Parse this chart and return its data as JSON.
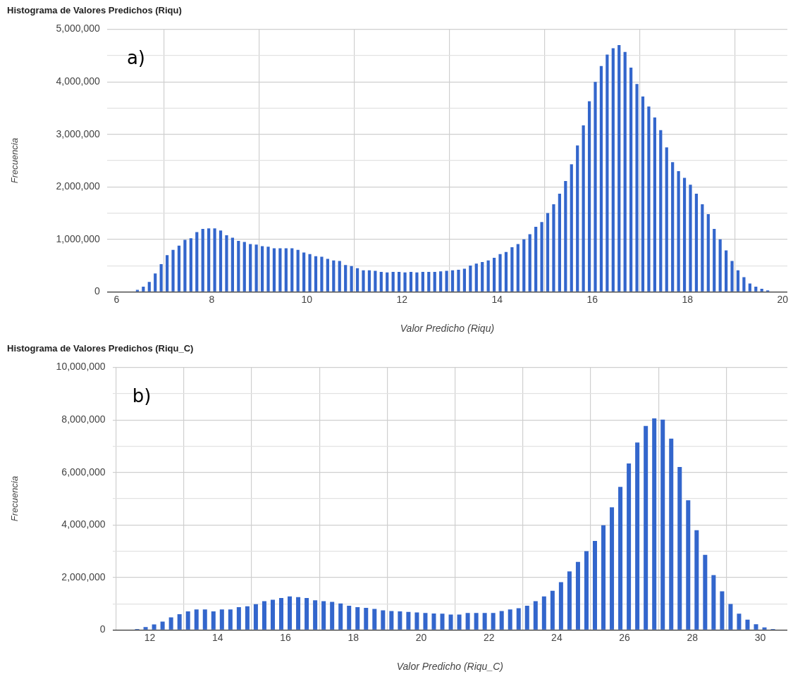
{
  "chart_data": [
    {
      "type": "histogram",
      "title": "Histograma de Valores Predichos (Riqu)",
      "xlabel": "Valor Predicho (Riqu)",
      "ylabel": "Frecuencia",
      "annotations": [
        "a)"
      ],
      "color": "#3366cc",
      "grid": true,
      "legend": false,
      "bins": [
        6.25,
        6.375,
        6.5,
        6.625,
        6.75,
        6.875,
        7,
        7.125,
        7.25,
        7.375,
        7.5,
        7.625,
        7.75,
        7.875,
        8,
        8.125,
        8.25,
        8.375,
        8.5,
        8.625,
        8.75,
        8.875,
        9,
        9.125,
        9.25,
        9.375,
        9.5,
        9.625,
        9.75,
        9.875,
        10,
        10.125,
        10.25,
        10.375,
        10.5,
        10.625,
        10.75,
        10.875,
        11,
        11.125,
        11.25,
        11.375,
        11.5,
        11.625,
        11.75,
        11.875,
        12,
        12.125,
        12.25,
        12.375,
        12.5,
        12.625,
        12.75,
        12.875,
        13,
        13.125,
        13.25,
        13.375,
        13.5,
        13.625,
        13.75,
        13.875,
        14,
        14.125,
        14.25,
        14.375,
        14.5,
        14.625,
        14.75,
        14.875,
        15,
        15.125,
        15.25,
        15.375,
        15.5,
        15.625,
        15.75,
        15.875,
        16,
        16.125,
        16.25,
        16.375,
        16.5,
        16.625,
        16.75,
        16.875,
        17,
        17.125,
        17.25,
        17.375,
        17.5,
        17.625,
        17.75,
        17.875,
        18,
        18.125,
        18.25,
        18.375,
        18.5,
        18.625,
        18.75,
        18.875,
        19,
        19.125,
        19.25,
        19.375,
        19.5,
        19.625,
        19.75,
        19.875
      ],
      "values": [
        10000,
        40000,
        100000,
        190000,
        350000,
        530000,
        700000,
        800000,
        880000,
        990000,
        1020000,
        1140000,
        1200000,
        1210000,
        1210000,
        1170000,
        1080000,
        1030000,
        970000,
        950000,
        910000,
        900000,
        870000,
        860000,
        830000,
        830000,
        830000,
        830000,
        800000,
        750000,
        720000,
        680000,
        670000,
        630000,
        600000,
        590000,
        510000,
        490000,
        450000,
        410000,
        410000,
        400000,
        380000,
        370000,
        380000,
        380000,
        370000,
        380000,
        370000,
        380000,
        380000,
        380000,
        390000,
        400000,
        410000,
        420000,
        440000,
        500000,
        540000,
        570000,
        600000,
        650000,
        720000,
        760000,
        850000,
        910000,
        1000000,
        1100000,
        1240000,
        1330000,
        1500000,
        1670000,
        1870000,
        2110000,
        2430000,
        2790000,
        3170000,
        3630000,
        4000000,
        4300000,
        4520000,
        4640000,
        4700000,
        4570000,
        4270000,
        3960000,
        3720000,
        3530000,
        3320000,
        3080000,
        2750000,
        2470000,
        2300000,
        2170000,
        2040000,
        1870000,
        1670000,
        1480000,
        1200000,
        1000000,
        790000,
        590000,
        410000,
        280000,
        160000,
        100000,
        60000,
        30000,
        10000
      ],
      "xlim": [
        5.8,
        20.1
      ],
      "xticks": [
        6,
        8,
        10,
        12,
        14,
        16,
        18,
        20
      ],
      "ylim": [
        0,
        5000000
      ],
      "yticks": [
        {
          "value": 0,
          "label": "0"
        },
        {
          "value": 500000,
          "label": null
        },
        {
          "value": 1000000,
          "label": "1,000,000"
        },
        {
          "value": 1500000,
          "label": null
        },
        {
          "value": 2000000,
          "label": "2,000,000"
        },
        {
          "value": 2500000,
          "label": null
        },
        {
          "value": 3000000,
          "label": "3,000,000"
        },
        {
          "value": 3500000,
          "label": null
        },
        {
          "value": 4000000,
          "label": "4,000,000"
        },
        {
          "value": 4500000,
          "label": null
        },
        {
          "value": 5000000,
          "label": "5,000,000"
        }
      ]
    },
    {
      "type": "histogram",
      "title": "Histograma de Valores Predichos (Riqu_C)",
      "xlabel": "Valor Predicho (Riqu_C)",
      "ylabel": "Frecuencia",
      "annotations": [
        "b)"
      ],
      "color": "#3366cc",
      "grid": true,
      "legend": false,
      "bins": [
        11.5,
        11.75,
        12,
        12.25,
        12.5,
        12.75,
        13,
        13.25,
        13.5,
        13.75,
        14,
        14.25,
        14.5,
        14.75,
        15,
        15.25,
        15.5,
        15.75,
        16,
        16.25,
        16.5,
        16.75,
        17,
        17.25,
        17.5,
        17.75,
        18,
        18.25,
        18.5,
        18.75,
        19,
        19.25,
        19.5,
        19.75,
        20,
        20.25,
        20.5,
        20.75,
        21,
        21.25,
        21.5,
        21.75,
        22,
        22.25,
        22.5,
        22.75,
        23,
        23.25,
        23.5,
        23.75,
        24,
        24.25,
        24.5,
        24.75,
        25,
        25.25,
        25.5,
        25.75,
        26,
        26.25,
        26.5,
        26.75,
        27,
        27.25,
        27.5,
        27.75,
        28,
        28.25,
        28.5,
        28.75,
        29,
        29.25,
        29.5,
        29.75,
        30,
        30.25,
        30.5
      ],
      "values": [
        40000,
        110000,
        210000,
        320000,
        480000,
        600000,
        710000,
        780000,
        780000,
        710000,
        780000,
        780000,
        870000,
        900000,
        980000,
        1100000,
        1150000,
        1220000,
        1280000,
        1250000,
        1220000,
        1130000,
        1100000,
        1070000,
        1010000,
        920000,
        870000,
        840000,
        800000,
        750000,
        720000,
        710000,
        690000,
        670000,
        650000,
        630000,
        620000,
        590000,
        590000,
        650000,
        650000,
        650000,
        650000,
        720000,
        780000,
        830000,
        920000,
        1100000,
        1280000,
        1490000,
        1820000,
        2230000,
        2590000,
        3000000,
        3390000,
        3990000,
        4670000,
        5450000,
        6340000,
        7140000,
        7770000,
        8060000,
        8010000,
        7290000,
        6210000,
        4940000,
        3800000,
        2860000,
        2090000,
        1470000,
        990000,
        620000,
        390000,
        220000,
        100000,
        40000
      ],
      "xlim": [
        10.9,
        30.8
      ],
      "xticks": [
        12,
        14,
        16,
        18,
        20,
        22,
        24,
        26,
        28,
        30
      ],
      "ylim": [
        0,
        10000000
      ],
      "yticks": [
        {
          "value": 0,
          "label": "0"
        },
        {
          "value": 1000000,
          "label": null
        },
        {
          "value": 2000000,
          "label": "2,000,000"
        },
        {
          "value": 3000000,
          "label": null
        },
        {
          "value": 4000000,
          "label": "4,000,000"
        },
        {
          "value": 5000000,
          "label": null
        },
        {
          "value": 6000000,
          "label": "6,000,000"
        },
        {
          "value": 7000000,
          "label": null
        },
        {
          "value": 8000000,
          "label": "8,000,000"
        },
        {
          "value": 9000000,
          "label": null
        },
        {
          "value": 10000000,
          "label": "10,000,000"
        }
      ]
    }
  ]
}
